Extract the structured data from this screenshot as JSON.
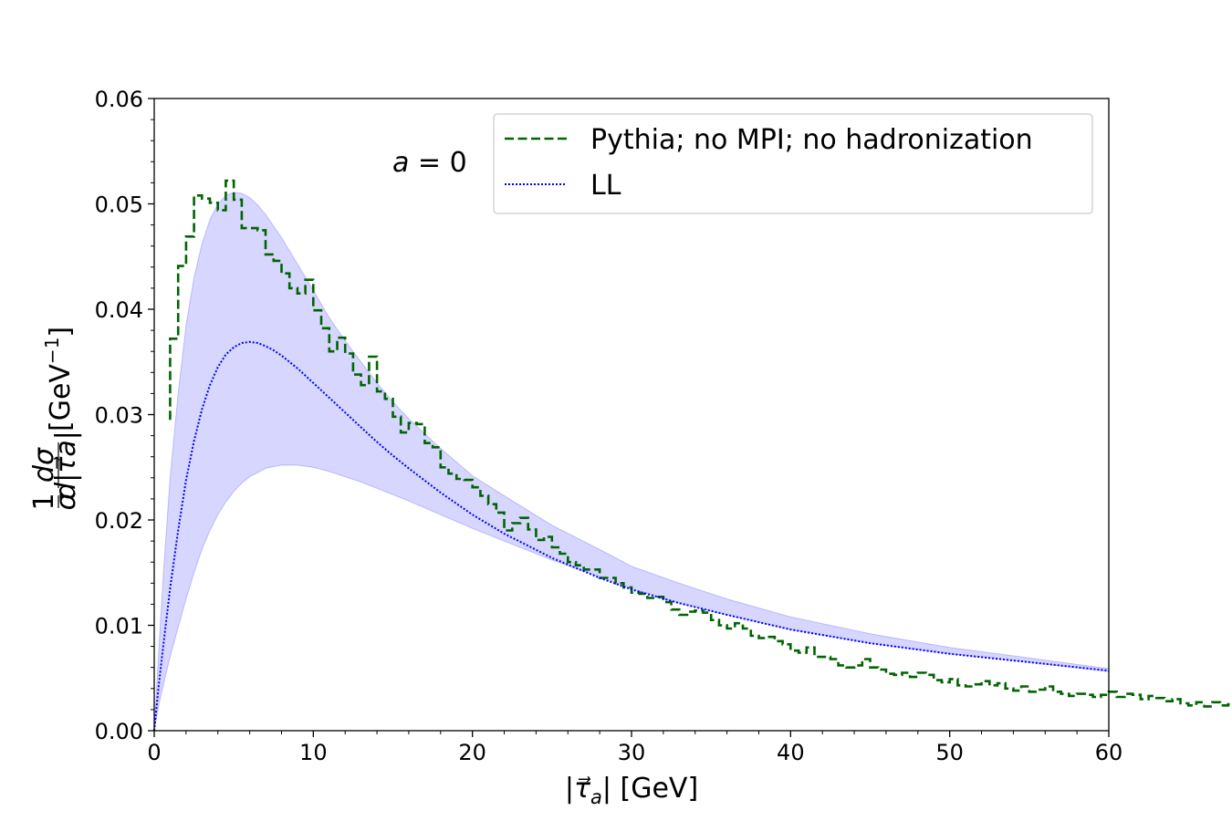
{
  "chart_data": {
    "type": "line",
    "title": "",
    "xlabel": "|τ⃗_a| [GeV]",
    "xlabel_parts": {
      "open": "|",
      "symbol": "τ⃗",
      "sub": "a",
      "close": "| [GeV]"
    },
    "ylabel": "1/σ dσ/d|τ⃗_a| [GeV⁻¹]",
    "ylabel_parts": {
      "frac1_num": "1",
      "frac1_den": "σ",
      "frac2_num": "dσ",
      "frac2_den": "d|τ⃗a|",
      "unit": "[GeV",
      "unit_exp": "−1",
      "unit_close": "]"
    },
    "xlim": [
      0,
      60
    ],
    "ylim": [
      0,
      0.06
    ],
    "x_ticks": [
      0,
      10,
      20,
      30,
      40,
      50,
      60
    ],
    "x_tick_labels": [
      "0",
      "10",
      "20",
      "30",
      "40",
      "50",
      "60"
    ],
    "y_ticks": [
      0,
      0.01,
      0.02,
      0.03,
      0.04,
      0.05,
      0.06
    ],
    "y_tick_labels": [
      "0.00",
      "0.01",
      "0.02",
      "0.03",
      "0.04",
      "0.05",
      "0.06"
    ],
    "annotation": {
      "lhs": "a",
      "eq": " = ",
      "rhs": "0"
    },
    "legend_position": "top-right",
    "series": [
      {
        "name": "Pythia; no MPI; no hadronization",
        "style": "dashed-step",
        "color": "#006400",
        "bin_width": 0.5,
        "x_start": 1.0,
        "values": [
          0.0372,
          0.0441,
          0.0469,
          0.0508,
          0.0505,
          0.0501,
          0.0494,
          0.0522,
          0.0504,
          0.0477,
          0.0477,
          0.0475,
          0.0452,
          0.0446,
          0.0434,
          0.042,
          0.0415,
          0.0428,
          0.0399,
          0.0382,
          0.036,
          0.0373,
          0.0358,
          0.0338,
          0.0328,
          0.0355,
          0.0322,
          0.0315,
          0.0298,
          0.0283,
          0.0292,
          0.0291,
          0.0273,
          0.0269,
          0.025,
          0.0244,
          0.0239,
          0.0238,
          0.0231,
          0.0223,
          0.0215,
          0.0207,
          0.019,
          0.0197,
          0.0202,
          0.0191,
          0.0181,
          0.0184,
          0.0174,
          0.0168,
          0.016,
          0.0157,
          0.0153,
          0.0153,
          0.0145,
          0.0145,
          0.014,
          0.0136,
          0.0131,
          0.013,
          0.0126,
          0.0127,
          0.0122,
          0.0115,
          0.011,
          0.0113,
          0.0114,
          0.0112,
          0.0105,
          0.01,
          0.0097,
          0.0102,
          0.0097,
          0.009,
          0.0088,
          0.0089,
          0.0085,
          0.0082,
          0.0076,
          0.0074,
          0.0079,
          0.007,
          0.007,
          0.0068,
          0.0062,
          0.006,
          0.0062,
          0.0068,
          0.006,
          0.0058,
          0.0054,
          0.0053,
          0.0055,
          0.0051,
          0.0055,
          0.0053,
          0.0048,
          0.0046,
          0.0049,
          0.0043,
          0.0042,
          0.0044,
          0.0047,
          0.0043,
          0.0045,
          0.004,
          0.0038,
          0.0042,
          0.0037,
          0.0039,
          0.0042,
          0.0037,
          0.0035,
          0.0033,
          0.0035,
          0.0034,
          0.0032,
          0.0034,
          0.0037,
          0.0032,
          0.0035,
          0.0034,
          0.003,
          0.0033,
          0.0031,
          0.0028,
          0.003,
          0.0026,
          0.0024,
          0.0027,
          0.0023,
          0.0027,
          0.0024,
          0.0025,
          0.0028,
          0.0026,
          0.0022,
          0.0022
        ]
      },
      {
        "name": "LL",
        "style": "dotted",
        "color": "#0000ff",
        "x": [
          0,
          0.3,
          0.6,
          1,
          1.5,
          2,
          2.5,
          3,
          3.5,
          4,
          4.5,
          5,
          5.5,
          6,
          6.5,
          7,
          7.5,
          8,
          9,
          10,
          11,
          12,
          13,
          14,
          15,
          16,
          18,
          20,
          22,
          25,
          28,
          30,
          33,
          36,
          40,
          45,
          50,
          55,
          60
        ],
        "y": [
          0,
          0.0045,
          0.0085,
          0.0135,
          0.019,
          0.0238,
          0.0275,
          0.0305,
          0.0328,
          0.0345,
          0.0357,
          0.0364,
          0.0368,
          0.0369,
          0.0368,
          0.0365,
          0.0361,
          0.0356,
          0.0344,
          0.033,
          0.0316,
          0.0302,
          0.0288,
          0.0274,
          0.0261,
          0.0249,
          0.0226,
          0.0205,
          0.0187,
          0.0164,
          0.0145,
          0.0134,
          0.0121,
          0.011,
          0.0096,
          0.0083,
          0.0073,
          0.0065,
          0.0057
        ]
      }
    ],
    "band": {
      "name": "LL uncertainty",
      "color": "#0000ff",
      "opacity": 0.16,
      "x": [
        0,
        0.3,
        0.6,
        1,
        1.5,
        2,
        2.5,
        3,
        3.5,
        4,
        4.5,
        5,
        5.5,
        6,
        6.5,
        7,
        8,
        9,
        10,
        11,
        12,
        13,
        14,
        15,
        16,
        18,
        20,
        22,
        25,
        28,
        30,
        33,
        36,
        40,
        45,
        50,
        55,
        60
      ],
      "lower": [
        0,
        0.0025,
        0.0045,
        0.007,
        0.0098,
        0.0125,
        0.015,
        0.0172,
        0.019,
        0.0205,
        0.0217,
        0.0227,
        0.0235,
        0.0241,
        0.0245,
        0.0249,
        0.0252,
        0.0252,
        0.025,
        0.0246,
        0.0241,
        0.0236,
        0.023,
        0.0224,
        0.0218,
        0.0205,
        0.0192,
        0.018,
        0.0162,
        0.0146,
        0.0135,
        0.0121,
        0.011,
        0.0096,
        0.0083,
        0.0073,
        0.0065,
        0.0056
      ],
      "upper": [
        0,
        0.008,
        0.0155,
        0.024,
        0.032,
        0.0385,
        0.043,
        0.0462,
        0.0485,
        0.05,
        0.0508,
        0.0511,
        0.051,
        0.0506,
        0.0499,
        0.049,
        0.0468,
        0.0443,
        0.0418,
        0.0392,
        0.037,
        0.035,
        0.033,
        0.0312,
        0.0296,
        0.0268,
        0.0242,
        0.0223,
        0.0195,
        0.0172,
        0.0156,
        0.014,
        0.0125,
        0.0108,
        0.0092,
        0.0079,
        0.0069,
        0.0059
      ]
    }
  }
}
